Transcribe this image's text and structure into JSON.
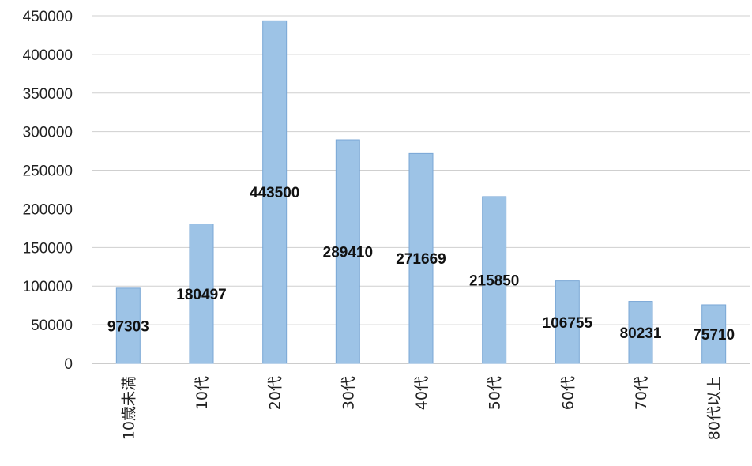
{
  "chart_data": {
    "type": "bar",
    "categories": [
      "10歳未満",
      "10代",
      "20代",
      "30代",
      "40代",
      "50代",
      "60代",
      "70代",
      "80代以上"
    ],
    "values": [
      97303,
      180497,
      443500,
      289410,
      271669,
      215850,
      106755,
      80231,
      75710
    ],
    "data_labels": [
      "97303",
      "180497",
      "443500",
      "289410",
      "271669",
      "215850",
      "106755",
      "80231",
      "75710"
    ],
    "y_ticks": [
      "0",
      "50000",
      "100000",
      "150000",
      "200000",
      "250000",
      "300000",
      "350000",
      "400000",
      "450000"
    ],
    "ylim": [
      0,
      450000
    ],
    "grid": true,
    "legend": "none",
    "title": "",
    "xlabel": "",
    "ylabel": "",
    "colors": {
      "bar": "#9dc3e6",
      "bar_edge": "#7aa7d6",
      "grid": "#cfcfcf"
    }
  }
}
